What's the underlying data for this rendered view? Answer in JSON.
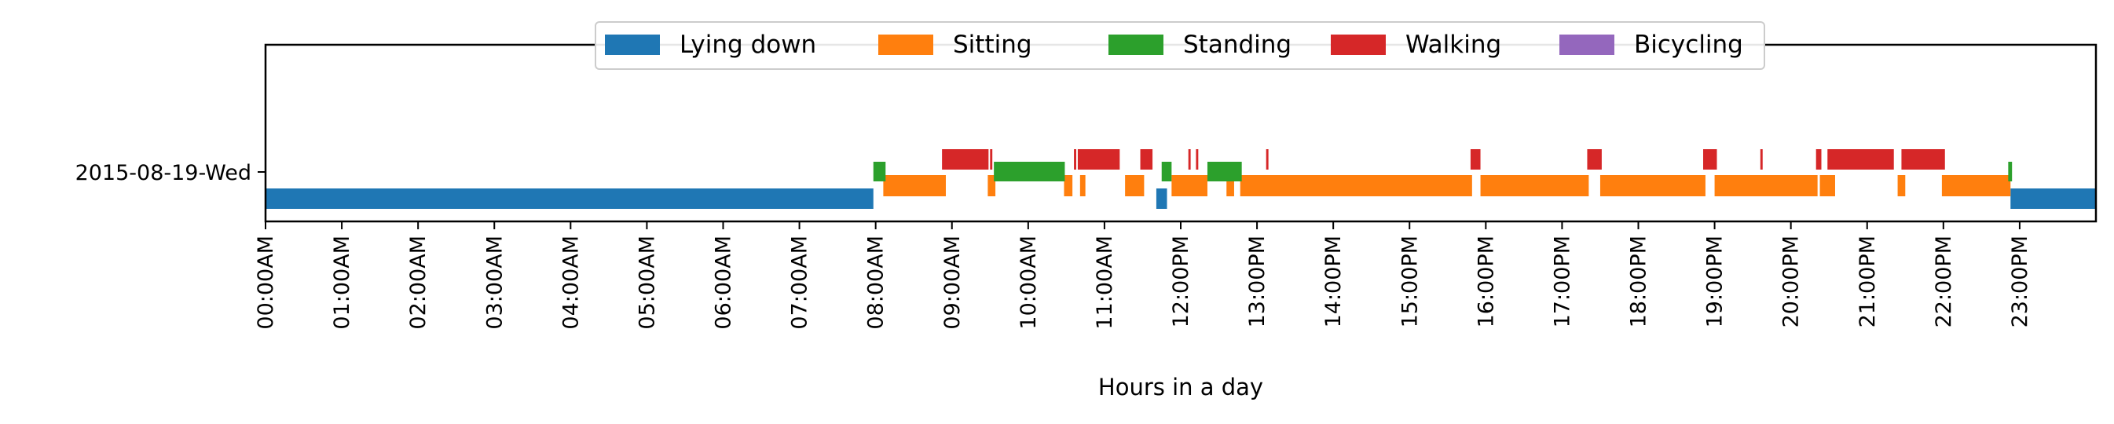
{
  "chart_data": {
    "type": "timeline",
    "xlabel": "Hours in a day",
    "ylabel": "",
    "xlim": [
      0,
      24
    ],
    "y_categories": [
      "2015-08-19-Wed"
    ],
    "x_tick_labels": [
      "00:00AM",
      "01:00AM",
      "02:00AM",
      "03:00AM",
      "04:00AM",
      "05:00AM",
      "06:00AM",
      "07:00AM",
      "08:00AM",
      "09:00AM",
      "10:00AM",
      "11:00AM",
      "12:00PM",
      "13:00PM",
      "14:00PM",
      "15:00PM",
      "16:00PM",
      "17:00PM",
      "18:00PM",
      "19:00PM",
      "20:00PM",
      "21:00PM",
      "22:00PM",
      "23:00PM"
    ],
    "legend_position": "top-center",
    "series": [
      {
        "name": "Lying down",
        "color": "#1f77b4",
        "intervals": [
          [
            0.0,
            7.97
          ],
          [
            11.68,
            11.82
          ],
          [
            22.88,
            24.0
          ]
        ]
      },
      {
        "name": "Sitting",
        "color": "#ff7f0e",
        "intervals": [
          [
            8.1,
            8.92
          ],
          [
            9.47,
            9.57
          ],
          [
            10.47,
            10.58
          ],
          [
            10.68,
            10.75
          ],
          [
            11.27,
            11.52
          ],
          [
            11.88,
            12.35
          ],
          [
            12.6,
            12.7
          ],
          [
            12.78,
            15.82
          ],
          [
            15.93,
            17.35
          ],
          [
            17.5,
            18.88
          ],
          [
            19.0,
            20.35
          ],
          [
            20.38,
            20.58
          ],
          [
            21.4,
            21.5
          ],
          [
            21.98,
            22.88
          ]
        ],
        "lane": "bottom"
      },
      {
        "name": "Standing",
        "color": "#2ca02c",
        "intervals": [
          [
            7.97,
            8.13
          ],
          [
            9.55,
            10.48
          ],
          [
            11.75,
            11.88
          ],
          [
            12.35,
            12.8
          ],
          [
            22.85,
            22.9
          ]
        ]
      },
      {
        "name": "Walking",
        "color": "#d62728",
        "intervals": [
          [
            8.87,
            9.48
          ],
          [
            9.5,
            9.53
          ],
          [
            10.6,
            10.63
          ],
          [
            10.65,
            11.2
          ],
          [
            11.47,
            11.63
          ],
          [
            12.1,
            12.13
          ],
          [
            12.2,
            12.23
          ],
          [
            13.12,
            13.15
          ],
          [
            15.8,
            15.93
          ],
          [
            17.33,
            17.52
          ],
          [
            18.85,
            19.03
          ],
          [
            19.6,
            19.63
          ],
          [
            20.33,
            20.4
          ],
          [
            20.48,
            21.35
          ],
          [
            21.45,
            22.02
          ]
        ]
      },
      {
        "name": "Bicycling",
        "color": "#9467bd",
        "intervals": []
      }
    ]
  }
}
